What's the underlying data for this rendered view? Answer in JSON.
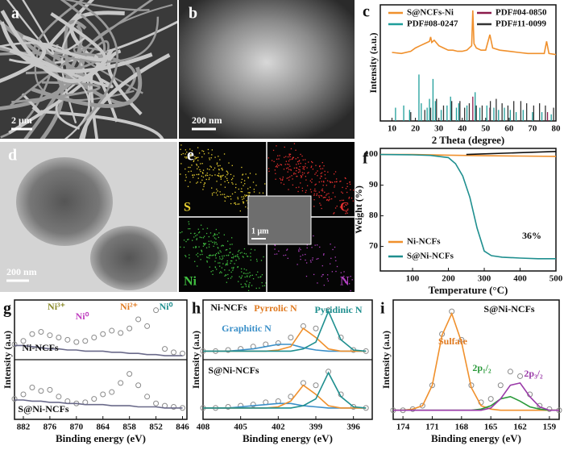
{
  "panels": [
    {
      "label": "a",
      "scale_bar": "2 μm"
    },
    {
      "label": "b",
      "scale_bar": "200 nm"
    },
    {
      "label": "d",
      "scale_bar": "200 nm"
    },
    {
      "label": "e",
      "scale_bar": "1 μm",
      "elements": [
        "S",
        "C",
        "Ni",
        "N"
      ]
    }
  ],
  "chart_data": [
    {
      "type": "line",
      "label": "c",
      "xlabel": "2 Theta (degree)",
      "ylabel": "Intensity (a.u.)",
      "xlim": [
        5,
        80
      ],
      "xticks": [
        10,
        20,
        30,
        40,
        50,
        60,
        70,
        80
      ],
      "ylim": [
        0,
        105
      ],
      "legend": "top",
      "series": [
        {
          "name": "S@NCFs-Ni",
          "color": "#f0902c",
          "x": [
            10,
            14,
            18,
            20,
            22,
            24,
            26,
            26.5,
            27,
            28,
            30,
            32,
            34,
            36,
            38,
            40,
            42,
            44,
            44.5,
            45,
            46,
            48,
            50,
            51.8,
            53,
            56,
            60,
            64,
            68,
            72,
            75,
            76,
            77,
            80
          ],
          "values": [
            62,
            61,
            63,
            66,
            68,
            70,
            72,
            76,
            71,
            73,
            68,
            66,
            64,
            64,
            63,
            63,
            64,
            68,
            100,
            70,
            66,
            64,
            64,
            78,
            66,
            64,
            63,
            62,
            61,
            61,
            61,
            72,
            61,
            60
          ]
        },
        {
          "name": "PDF#04-0850",
          "color": "#8b1a4b",
          "type": "bar",
          "x": [
            44.5,
            51.8,
            76.4
          ],
          "values": [
            22,
            12,
            8
          ]
        },
        {
          "name": "PDF#08-0247",
          "color": "#1f9e9a",
          "type": "bar",
          "x": [
            11.5,
            15,
            17.5,
            21.5,
            22.5,
            25,
            26,
            27.5,
            28.5,
            31,
            33.5,
            35,
            37.5,
            38.5,
            42,
            45.5,
            47.5,
            50.5,
            53.5,
            55.5,
            58,
            60.5,
            63,
            66,
            70,
            74,
            78
          ],
          "values": [
            12,
            14,
            10,
            42,
            16,
            12,
            20,
            38,
            18,
            10,
            14,
            22,
            12,
            16,
            14,
            26,
            12,
            14,
            12,
            10,
            12,
            10,
            8,
            10,
            8,
            8,
            6
          ]
        },
        {
          "name": "PDF#11-0099",
          "color": "#333333",
          "type": "bar",
          "x": [
            18,
            24,
            26.5,
            29,
            32,
            35.5,
            39,
            41,
            43,
            46,
            48.5,
            52,
            54.5,
            57,
            59.5,
            62,
            65,
            67.5,
            70.5,
            73,
            75.5,
            79
          ],
          "values": [
            8,
            10,
            12,
            20,
            14,
            18,
            18,
            12,
            16,
            14,
            14,
            18,
            20,
            16,
            14,
            18,
            18,
            16,
            14,
            16,
            14,
            12
          ]
        }
      ]
    },
    {
      "type": "line",
      "label": "f",
      "xlabel": "Temperature (°C)",
      "ylabel": "Weight (%)",
      "xlim": [
        10,
        500
      ],
      "xticks": [
        100,
        200,
        300,
        400,
        500
      ],
      "ylim": [
        62,
        102
      ],
      "yticks": [
        70,
        80,
        90,
        100
      ],
      "legend": "bottom-left",
      "annotations": [
        "36%"
      ],
      "series": [
        {
          "name": "Ni-NCFs",
          "color": "#f0902c",
          "x": [
            10,
            100,
            200,
            300,
            400,
            500
          ],
          "values": [
            100,
            100,
            99.8,
            99.6,
            99.5,
            99.4
          ]
        },
        {
          "name": "S@Ni-NCFs",
          "color": "#1f8f8f",
          "x": [
            10,
            100,
            150,
            200,
            220,
            240,
            260,
            280,
            300,
            320,
            350,
            400,
            450,
            500
          ],
          "values": [
            100,
            99.9,
            99.7,
            99,
            97,
            93,
            86,
            76,
            68.5,
            67,
            66.5,
            66.2,
            66,
            66
          ]
        },
        {
          "color": "#111111",
          "x": [
            250,
            300,
            400,
            500
          ],
          "values": [
            100,
            100.2,
            100.6,
            101
          ]
        }
      ]
    },
    {
      "type": "line",
      "label": "g",
      "xlabel": "Binding energy (eV)",
      "ylabel": "Intensity (a.u)",
      "xlim": [
        884,
        845
      ],
      "xticks": [
        882,
        876,
        870,
        864,
        858,
        852,
        846
      ],
      "ylim": [
        0,
        105
      ],
      "annotations": [
        "Ni³⁺",
        "Ni⁰",
        "Ni²⁺",
        "Ni⁰",
        "Ni-NCFs",
        "S@Ni-NCFs"
      ],
      "x": [
        884,
        882,
        880,
        878,
        876,
        874,
        872,
        870,
        868,
        866,
        864,
        862,
        860,
        858,
        856,
        854,
        852,
        850,
        848,
        846
      ],
      "series": [
        {
          "type": "scatter",
          "color": "#8a8a8a",
          "values": [
            66,
            69,
            75,
            77,
            74,
            72,
            70,
            68,
            69,
            72,
            75,
            78,
            76,
            80,
            88,
            82,
            96,
            62,
            59,
            58
          ]
        },
        {
          "color": "#6a6a8a",
          "values": [
            65,
            65,
            64,
            63,
            62,
            62,
            61,
            61,
            60,
            60,
            60,
            59,
            59,
            58,
            58,
            57,
            57,
            56,
            56,
            56
          ]
        },
        {
          "type": "scatter",
          "color": "#8a8a8a",
          "values": [
            18,
            22,
            28,
            25,
            26,
            20,
            16,
            14,
            15,
            18,
            22,
            24,
            32,
            40,
            30,
            20,
            14,
            12,
            11,
            10
          ]
        },
        {
          "color": "#6a6a8a",
          "values": [
            17,
            17,
            16,
            16,
            15,
            15,
            14,
            14,
            13,
            13,
            13,
            12,
            12,
            12,
            11,
            11,
            11,
            10,
            10,
            10
          ]
        }
      ]
    },
    {
      "type": "line",
      "label": "h",
      "xlabel": "Binding energy (eV)",
      "ylabel": "Intensity (a.u)",
      "xlim": [
        408,
        394.5
      ],
      "xticks": [
        408,
        405,
        402,
        399,
        396
      ],
      "ylim": [
        0,
        105
      ],
      "annotations": [
        "Graphitic N",
        "Pyrrolic N",
        "Pyridinic N",
        "Ni-NCFs",
        "S@Ni-NCFs"
      ],
      "x": [
        408,
        407,
        406,
        405,
        404,
        403,
        402,
        401,
        400,
        399,
        398,
        397,
        396,
        395
      ],
      "series": [
        {
          "type": "scatter",
          "color": "#8a8a8a",
          "values": [
            60,
            60,
            61,
            62,
            64,
            66,
            67,
            72,
            82,
            80,
            96,
            72,
            61,
            60
          ]
        },
        {
          "color": "#3a8fc8",
          "values": [
            60,
            60,
            60,
            61,
            62,
            64,
            66,
            66,
            63,
            61,
            60,
            60,
            60,
            60
          ]
        },
        {
          "color": "#f0902c",
          "values": [
            60,
            60,
            60,
            60,
            60,
            60,
            61,
            64,
            80,
            72,
            62,
            60,
            60,
            60
          ]
        },
        {
          "color": "#1f8f8f",
          "values": [
            60,
            60,
            60,
            60,
            60,
            60,
            60,
            60,
            62,
            68,
            95,
            70,
            61,
            60
          ]
        },
        {
          "type": "scatter",
          "color": "#8a8a8a",
          "values": [
            10,
            10,
            11,
            12,
            13,
            15,
            16,
            20,
            32,
            30,
            42,
            22,
            11,
            10
          ]
        },
        {
          "color": "#3a8fc8",
          "values": [
            10,
            10,
            10,
            11,
            12,
            13,
            14,
            14,
            12,
            11,
            10,
            10,
            10,
            10
          ]
        },
        {
          "color": "#f0902c",
          "values": [
            10,
            10,
            10,
            10,
            10,
            10,
            11,
            16,
            30,
            22,
            12,
            10,
            10,
            10
          ]
        },
        {
          "color": "#1f8f8f",
          "values": [
            10,
            10,
            10,
            10,
            10,
            10,
            10,
            10,
            12,
            18,
            41,
            20,
            11,
            10
          ]
        }
      ]
    },
    {
      "type": "line",
      "label": "i",
      "xlabel": "Binding energy (eV)",
      "ylabel": "Intensity (a.u)",
      "xlim": [
        175,
        158
      ],
      "xticks": [
        174,
        171,
        168,
        165,
        162,
        159
      ],
      "ylim": [
        0,
        105
      ],
      "annotations": [
        "Sulfate",
        "2p₁/₂",
        "2p₃/₂",
        "S@Ni-NCFs"
      ],
      "x": [
        175,
        174,
        173,
        172,
        171,
        170,
        169,
        168,
        167,
        166,
        165,
        164,
        163,
        162,
        161,
        160,
        159,
        158
      ],
      "series": [
        {
          "type": "scatter",
          "color": "#8a8a8a",
          "values": [
            8,
            8,
            9,
            12,
            30,
            75,
            95,
            70,
            30,
            15,
            18,
            30,
            42,
            38,
            22,
            12,
            9,
            8
          ]
        },
        {
          "color": "#f0902c",
          "values": [
            8,
            8,
            9,
            12,
            30,
            74,
            93,
            68,
            28,
            12,
            9,
            8,
            8,
            8,
            8,
            8,
            8,
            8
          ]
        },
        {
          "color": "#2a9a3a",
          "values": [
            8,
            8,
            8,
            8,
            8,
            8,
            8,
            8,
            8,
            9,
            12,
            18,
            20,
            16,
            11,
            9,
            8,
            8
          ]
        },
        {
          "color": "#9a3aa8",
          "values": [
            8,
            8,
            8,
            8,
            8,
            8,
            8,
            8,
            8,
            8,
            10,
            18,
            30,
            32,
            20,
            11,
            8,
            8
          ]
        }
      ]
    }
  ]
}
